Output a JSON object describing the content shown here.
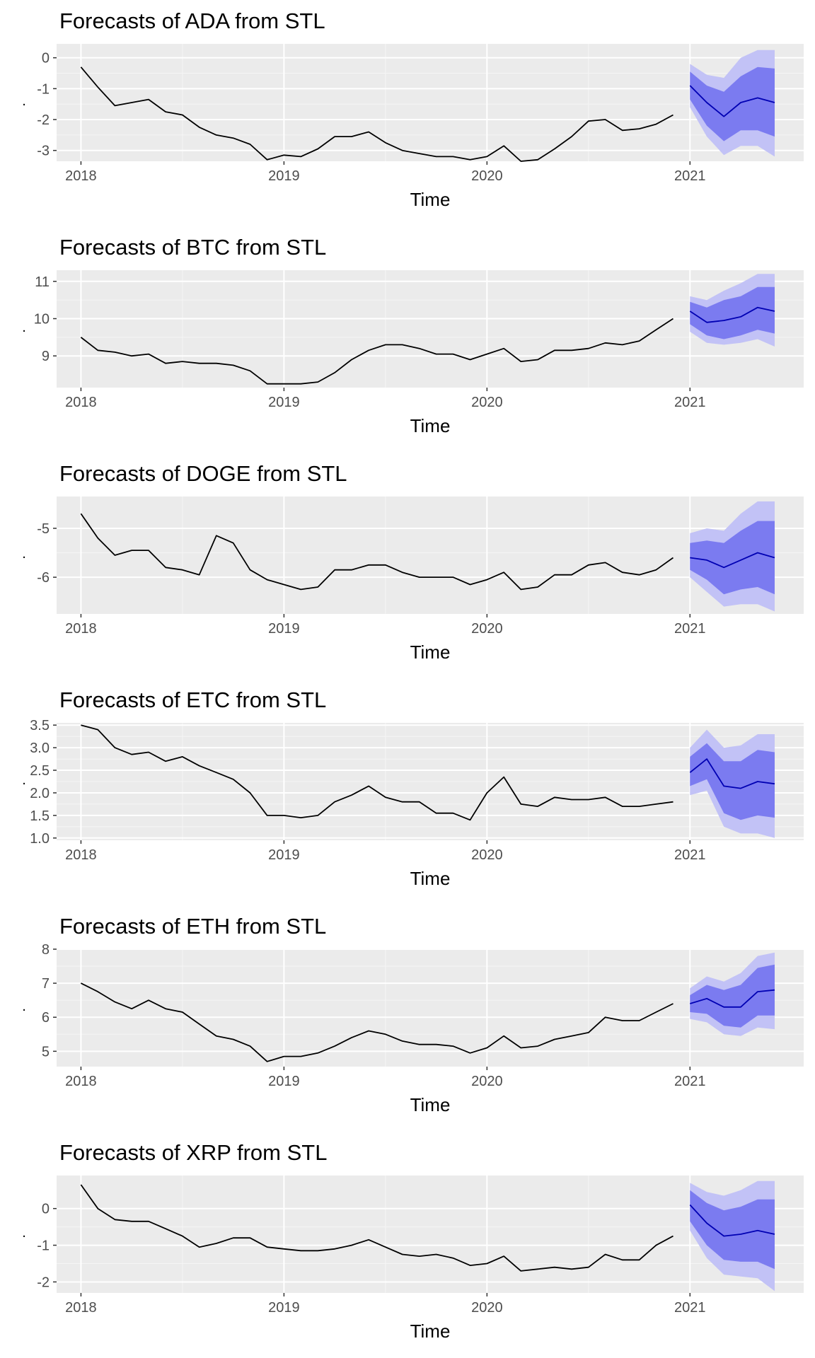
{
  "chart_data": [
    {
      "type": "line",
      "title": "Forecasts of ADA from STL",
      "xlabel": "Time",
      "ylabel": ".",
      "xlim": [
        2017.88,
        2021.56
      ],
      "ylim": [
        -3.35,
        0.45
      ],
      "x_ticks": [
        2018,
        2019,
        2020,
        2021
      ],
      "y_ticks": [
        0,
        -1,
        -2,
        -3
      ],
      "grid": true,
      "series": [
        {
          "x": [
            2018.0,
            2018.083,
            2018.167,
            2018.25,
            2018.333,
            2018.417,
            2018.5,
            2018.583,
            2018.667,
            2018.75,
            2018.833,
            2018.917,
            2019.0,
            2019.083,
            2019.167,
            2019.25,
            2019.333,
            2019.417,
            2019.5,
            2019.583,
            2019.667,
            2019.75,
            2019.833,
            2019.917,
            2020.0,
            2020.083,
            2020.167,
            2020.25,
            2020.333,
            2020.417,
            2020.5,
            2020.583,
            2020.667,
            2020.75,
            2020.833,
            2020.917
          ],
          "values": [
            -0.3,
            -0.95,
            -1.55,
            -1.45,
            -1.35,
            -1.75,
            -1.85,
            -2.25,
            -2.5,
            -2.6,
            -2.8,
            -3.3,
            -3.15,
            -3.2,
            -2.95,
            -2.55,
            -2.55,
            -2.4,
            -2.75,
            -3.0,
            -3.1,
            -3.2,
            -3.2,
            -3.3,
            -3.2,
            -2.85,
            -3.35,
            -3.3,
            -2.95,
            -2.55,
            -2.05,
            -2.0,
            -2.35,
            -2.3,
            -2.15,
            -1.85
          ]
        },
        {
          "name": "forecast",
          "x": [
            2021.0,
            2021.083,
            2021.167,
            2021.25,
            2021.333,
            2021.417
          ],
          "values": [
            -0.9,
            -1.45,
            -1.9,
            -1.45,
            -1.3,
            -1.45
          ],
          "lo80": [
            -1.35,
            -2.2,
            -2.7,
            -2.35,
            -2.35,
            -2.55
          ],
          "hi80": [
            -0.45,
            -0.9,
            -1.1,
            -0.6,
            -0.3,
            -0.35
          ],
          "lo95": [
            -1.6,
            -2.55,
            -3.15,
            -2.85,
            -2.85,
            -3.2
          ],
          "hi95": [
            -0.2,
            -0.55,
            -0.65,
            0.0,
            0.25,
            0.25
          ]
        }
      ]
    },
    {
      "type": "line",
      "title": "Forecasts of BTC from STL",
      "xlabel": "Time",
      "ylabel": ".",
      "xlim": [
        2017.88,
        2021.56
      ],
      "ylim": [
        8.15,
        11.3
      ],
      "x_ticks": [
        2018,
        2019,
        2020,
        2021
      ],
      "y_ticks": [
        9,
        10,
        11
      ],
      "grid": true,
      "series": [
        {
          "x": [
            2018.0,
            2018.083,
            2018.167,
            2018.25,
            2018.333,
            2018.417,
            2018.5,
            2018.583,
            2018.667,
            2018.75,
            2018.833,
            2018.917,
            2019.0,
            2019.083,
            2019.167,
            2019.25,
            2019.333,
            2019.417,
            2019.5,
            2019.583,
            2019.667,
            2019.75,
            2019.833,
            2019.917,
            2020.0,
            2020.083,
            2020.167,
            2020.25,
            2020.333,
            2020.417,
            2020.5,
            2020.583,
            2020.667,
            2020.75,
            2020.833,
            2020.917
          ],
          "values": [
            9.5,
            9.15,
            9.1,
            9.0,
            9.05,
            8.8,
            8.85,
            8.8,
            8.8,
            8.75,
            8.6,
            8.25,
            8.25,
            8.25,
            8.3,
            8.55,
            8.9,
            9.15,
            9.3,
            9.3,
            9.2,
            9.05,
            9.05,
            8.9,
            9.05,
            9.2,
            8.85,
            8.9,
            9.15,
            9.15,
            9.2,
            9.35,
            9.3,
            9.4,
            9.7,
            10.0
          ]
        },
        {
          "name": "forecast",
          "x": [
            2021.0,
            2021.083,
            2021.167,
            2021.25,
            2021.333,
            2021.417
          ],
          "values": [
            10.2,
            9.9,
            9.95,
            10.05,
            10.3,
            10.2
          ],
          "lo80": [
            9.85,
            9.55,
            9.45,
            9.55,
            9.7,
            9.6
          ],
          "hi80": [
            10.45,
            10.3,
            10.5,
            10.6,
            10.85,
            10.85
          ],
          "lo95": [
            9.65,
            9.35,
            9.3,
            9.35,
            9.45,
            9.25
          ],
          "hi95": [
            10.6,
            10.5,
            10.75,
            10.95,
            11.2,
            11.2
          ]
        }
      ]
    },
    {
      "type": "line",
      "title": "Forecasts of DOGE from STL",
      "xlabel": "Time",
      "ylabel": ".",
      "xlim": [
        2017.88,
        2021.56
      ],
      "ylim": [
        -6.75,
        -4.35
      ],
      "x_ticks": [
        2018,
        2019,
        2020,
        2021
      ],
      "y_ticks": [
        -5,
        -6
      ],
      "grid": true,
      "series": [
        {
          "x": [
            2018.0,
            2018.083,
            2018.167,
            2018.25,
            2018.333,
            2018.417,
            2018.5,
            2018.583,
            2018.667,
            2018.75,
            2018.833,
            2018.917,
            2019.0,
            2019.083,
            2019.167,
            2019.25,
            2019.333,
            2019.417,
            2019.5,
            2019.583,
            2019.667,
            2019.75,
            2019.833,
            2019.917,
            2020.0,
            2020.083,
            2020.167,
            2020.25,
            2020.333,
            2020.417,
            2020.5,
            2020.583,
            2020.667,
            2020.75,
            2020.833,
            2020.917
          ],
          "values": [
            -4.7,
            -5.2,
            -5.55,
            -5.45,
            -5.45,
            -5.8,
            -5.85,
            -5.95,
            -5.15,
            -5.3,
            -5.85,
            -6.05,
            -6.15,
            -6.25,
            -6.2,
            -5.85,
            -5.85,
            -5.75,
            -5.75,
            -5.9,
            -6.0,
            -6.0,
            -6.0,
            -6.15,
            -6.05,
            -5.9,
            -6.25,
            -6.2,
            -5.95,
            -5.95,
            -5.75,
            -5.7,
            -5.9,
            -5.95,
            -5.85,
            -5.6
          ]
        },
        {
          "name": "forecast",
          "x": [
            2021.0,
            2021.083,
            2021.167,
            2021.25,
            2021.333,
            2021.417
          ],
          "values": [
            -5.6,
            -5.65,
            -5.8,
            -5.65,
            -5.5,
            -5.6
          ],
          "lo80": [
            -5.85,
            -6.05,
            -6.35,
            -6.25,
            -6.2,
            -6.35
          ],
          "hi80": [
            -5.3,
            -5.25,
            -5.3,
            -5.05,
            -4.85,
            -4.85
          ],
          "lo95": [
            -6.0,
            -6.3,
            -6.6,
            -6.55,
            -6.55,
            -6.7
          ],
          "hi95": [
            -5.1,
            -5.0,
            -5.05,
            -4.7,
            -4.45,
            -4.45
          ]
        }
      ]
    },
    {
      "type": "line",
      "title": "Forecasts of ETC from STL",
      "xlabel": "Time",
      "ylabel": ".",
      "xlim": [
        2017.88,
        2021.56
      ],
      "ylim": [
        0.95,
        3.55
      ],
      "x_ticks": [
        2018,
        2019,
        2020,
        2021
      ],
      "y_ticks": [
        1.0,
        1.5,
        2.0,
        2.5,
        3.0,
        3.5
      ],
      "y_tick_labels": [
        "1.0",
        "1.5",
        "2.0",
        "2.5",
        "3.0",
        "3.5"
      ],
      "grid": true,
      "series": [
        {
          "x": [
            2018.0,
            2018.083,
            2018.167,
            2018.25,
            2018.333,
            2018.417,
            2018.5,
            2018.583,
            2018.667,
            2018.75,
            2018.833,
            2018.917,
            2019.0,
            2019.083,
            2019.167,
            2019.25,
            2019.333,
            2019.417,
            2019.5,
            2019.583,
            2019.667,
            2019.75,
            2019.833,
            2019.917,
            2020.0,
            2020.083,
            2020.167,
            2020.25,
            2020.333,
            2020.417,
            2020.5,
            2020.583,
            2020.667,
            2020.75,
            2020.833,
            2020.917
          ],
          "values": [
            3.5,
            3.4,
            3.0,
            2.85,
            2.9,
            2.7,
            2.8,
            2.6,
            2.45,
            2.3,
            2.0,
            1.5,
            1.5,
            1.45,
            1.5,
            1.8,
            1.95,
            2.15,
            1.9,
            1.8,
            1.8,
            1.55,
            1.55,
            1.4,
            2.0,
            2.35,
            1.75,
            1.7,
            1.9,
            1.85,
            1.85,
            1.9,
            1.7,
            1.7,
            1.75,
            1.8
          ]
        },
        {
          "name": "forecast",
          "x": [
            2021.0,
            2021.083,
            2021.167,
            2021.25,
            2021.333,
            2021.417
          ],
          "values": [
            2.45,
            2.75,
            2.15,
            2.1,
            2.25,
            2.2
          ],
          "lo80": [
            2.15,
            2.3,
            1.55,
            1.4,
            1.5,
            1.45
          ],
          "hi80": [
            2.8,
            3.1,
            2.7,
            2.7,
            2.95,
            2.9
          ],
          "lo95": [
            1.95,
            2.05,
            1.25,
            1.1,
            1.1,
            1.0
          ],
          "hi95": [
            3.0,
            3.4,
            3.0,
            3.05,
            3.3,
            3.3
          ]
        }
      ]
    },
    {
      "type": "line",
      "title": "Forecasts of ETH from STL",
      "xlabel": "Time",
      "ylabel": ".",
      "xlim": [
        2017.88,
        2021.56
      ],
      "ylim": [
        4.55,
        8.0
      ],
      "x_ticks": [
        2018,
        2019,
        2020,
        2021
      ],
      "y_ticks": [
        5,
        6,
        7,
        8
      ],
      "grid": true,
      "series": [
        {
          "x": [
            2018.0,
            2018.083,
            2018.167,
            2018.25,
            2018.333,
            2018.417,
            2018.5,
            2018.583,
            2018.667,
            2018.75,
            2018.833,
            2018.917,
            2019.0,
            2019.083,
            2019.167,
            2019.25,
            2019.333,
            2019.417,
            2019.5,
            2019.583,
            2019.667,
            2019.75,
            2019.833,
            2019.917,
            2020.0,
            2020.083,
            2020.167,
            2020.25,
            2020.333,
            2020.417,
            2020.5,
            2020.583,
            2020.667,
            2020.75,
            2020.833,
            2020.917
          ],
          "values": [
            7.0,
            6.75,
            6.45,
            6.25,
            6.5,
            6.25,
            6.15,
            5.8,
            5.45,
            5.35,
            5.15,
            4.7,
            4.85,
            4.85,
            4.95,
            5.15,
            5.4,
            5.6,
            5.5,
            5.3,
            5.2,
            5.2,
            5.15,
            4.95,
            5.1,
            5.45,
            5.1,
            5.15,
            5.35,
            5.45,
            5.55,
            6.0,
            5.9,
            5.9,
            6.15,
            6.4
          ]
        },
        {
          "name": "forecast",
          "x": [
            2021.0,
            2021.083,
            2021.167,
            2021.25,
            2021.333,
            2021.417
          ],
          "values": [
            6.4,
            6.55,
            6.3,
            6.3,
            6.75,
            6.8
          ],
          "lo80": [
            6.15,
            6.1,
            5.75,
            5.7,
            6.05,
            6.05
          ],
          "hi80": [
            6.65,
            6.95,
            6.8,
            6.95,
            7.45,
            7.55
          ],
          "lo95": [
            5.95,
            5.85,
            5.5,
            5.45,
            5.7,
            5.65
          ],
          "hi95": [
            6.85,
            7.2,
            7.05,
            7.3,
            7.8,
            7.9
          ]
        }
      ]
    },
    {
      "type": "line",
      "title": "Forecasts of XRP from STL",
      "xlabel": "Time",
      "ylabel": ".",
      "xlim": [
        2017.88,
        2021.56
      ],
      "ylim": [
        -2.3,
        0.9
      ],
      "x_ticks": [
        2018,
        2019,
        2020,
        2021
      ],
      "y_ticks": [
        0,
        -1,
        -2
      ],
      "grid": true,
      "series": [
        {
          "x": [
            2018.0,
            2018.083,
            2018.167,
            2018.25,
            2018.333,
            2018.417,
            2018.5,
            2018.583,
            2018.667,
            2018.75,
            2018.833,
            2018.917,
            2019.0,
            2019.083,
            2019.167,
            2019.25,
            2019.333,
            2019.417,
            2019.5,
            2019.583,
            2019.667,
            2019.75,
            2019.833,
            2019.917,
            2020.0,
            2020.083,
            2020.167,
            2020.25,
            2020.333,
            2020.417,
            2020.5,
            2020.583,
            2020.667,
            2020.75,
            2020.833,
            2020.917
          ],
          "values": [
            0.65,
            0.0,
            -0.3,
            -0.35,
            -0.35,
            -0.55,
            -0.75,
            -1.05,
            -0.95,
            -0.8,
            -0.8,
            -1.05,
            -1.1,
            -1.15,
            -1.15,
            -1.1,
            -1.0,
            -0.85,
            -1.05,
            -1.25,
            -1.3,
            -1.25,
            -1.35,
            -1.55,
            -1.5,
            -1.3,
            -1.7,
            -1.65,
            -1.6,
            -1.65,
            -1.6,
            -1.25,
            -1.4,
            -1.4,
            -1.0,
            -0.75
          ]
        },
        {
          "name": "forecast",
          "x": [
            2021.0,
            2021.083,
            2021.167,
            2021.25,
            2021.333,
            2021.417
          ],
          "values": [
            0.1,
            -0.4,
            -0.75,
            -0.7,
            -0.6,
            -0.7
          ],
          "lo80": [
            -0.35,
            -1.0,
            -1.4,
            -1.45,
            -1.45,
            -1.65
          ],
          "hi80": [
            0.5,
            0.15,
            -0.05,
            0.05,
            0.25,
            0.25
          ],
          "lo95": [
            -0.6,
            -1.35,
            -1.8,
            -1.85,
            -1.9,
            -2.25
          ],
          "hi95": [
            0.7,
            0.45,
            0.35,
            0.5,
            0.75,
            0.75
          ]
        }
      ]
    }
  ],
  "colors": {
    "panel_bg": "#ebebeb",
    "grid_major": "#ffffff",
    "line": "#000000",
    "forecast_line": "#0000b3",
    "band80": "#7b7bf0",
    "band95": "#c2c2f6"
  }
}
